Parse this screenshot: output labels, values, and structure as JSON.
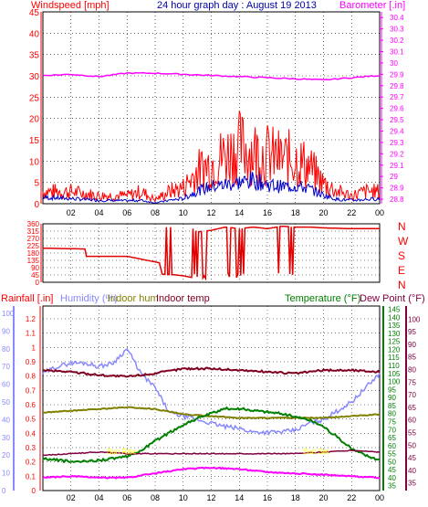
{
  "header": {
    "left_label": "Windspeed [mph]",
    "title": "24 hour graph day : August 19 2013",
    "right_label": "Barometer [.in]"
  },
  "lower_header": {
    "rainfall": "Rainfall [.in]",
    "humidity": "Humidity (%)",
    "indoor_hum": "Indoor hum",
    "indoor_temp": "Indoor temp",
    "temperature": "Temperature (°F)",
    "dew_point": "Dew Point (°F)"
  },
  "colors": {
    "wind": "#ff0000",
    "wind_avg": "#0000cc",
    "barometer": "#ff00ff",
    "direction": "#e00000",
    "rainfall": "#ff00ff",
    "humidity": "#8888ff",
    "indoor_hum": "#808000",
    "indoor_temp": "#800020",
    "temperature": "#008000",
    "dewpoint": "#800040",
    "sun_label": "#ffff00"
  },
  "chart_data": [
    {
      "type": "line",
      "name": "windspeed-barometer",
      "x_ticks": [
        "02",
        "04",
        "06",
        "08",
        "10",
        "12",
        "14",
        "16",
        "18",
        "20",
        "22",
        "00"
      ],
      "y_left_ticks": [
        0,
        5,
        10,
        15,
        20,
        25,
        30,
        35,
        40,
        45
      ],
      "y_left_range": [
        0,
        45
      ],
      "y_right_ticks": [
        "28.8",
        "28.9",
        "29",
        "29.1",
        "29.2",
        "29.3",
        "29.4",
        "29.5",
        "29.6",
        "29.7",
        "29.8",
        "29.9",
        "30",
        "30.1",
        "30.2",
        "30.3",
        "30.4"
      ],
      "y_right_range": [
        28.76,
        30.45
      ],
      "series": [
        {
          "role": "gust",
          "axis": "left",
          "x": [
            0,
            2,
            4,
            6,
            7,
            8,
            9,
            10,
            11,
            12,
            13,
            14,
            15,
            16,
            17,
            18,
            19,
            20,
            21,
            22,
            23,
            24
          ],
          "y": [
            3,
            3,
            2,
            2,
            3,
            1,
            3,
            4,
            8,
            10,
            12,
            14,
            13,
            12,
            11,
            11,
            9,
            5,
            3,
            2,
            3,
            3
          ]
        },
        {
          "role": "average",
          "axis": "left",
          "x": [
            0,
            2,
            4,
            6,
            7,
            8,
            9,
            10,
            11,
            12,
            13,
            14,
            15,
            16,
            17,
            18,
            19,
            20,
            21,
            22,
            23,
            24
          ],
          "y": [
            1.5,
            1.2,
            0.8,
            0.7,
            0.8,
            0.2,
            0.8,
            1.2,
            3,
            4,
            4.5,
            5,
            5.5,
            4.5,
            4,
            4.2,
            3.5,
            2,
            1,
            0.8,
            1,
            1.2
          ]
        },
        {
          "role": "barometer",
          "axis": "right",
          "x": [
            0,
            2,
            4,
            6,
            8,
            10,
            12,
            14,
            16,
            18,
            20,
            22,
            24
          ],
          "y": [
            29.89,
            29.9,
            29.88,
            29.91,
            29.91,
            29.9,
            29.89,
            29.88,
            29.87,
            29.86,
            29.85,
            29.87,
            29.89
          ]
        }
      ]
    },
    {
      "type": "line",
      "name": "wind-direction",
      "x_ticks": [
        "02",
        "04",
        "06",
        "08",
        "10",
        "12",
        "14",
        "16",
        "18",
        "20",
        "22",
        "00"
      ],
      "y_left_ticks": [
        0,
        45,
        90,
        135,
        180,
        225,
        270,
        315,
        360
      ],
      "y_left_range": [
        0,
        360
      ],
      "y_right_ticks": [
        "N",
        "W",
        "S",
        "E",
        "N"
      ],
      "x": [
        0,
        3,
        3.1,
        6,
        8.3,
        8.5,
        9.5,
        10,
        10.6,
        10.7,
        11,
        12,
        13,
        14,
        15,
        16,
        17,
        18,
        19,
        20,
        22,
        24
      ],
      "y": [
        210,
        205,
        160,
        160,
        120,
        50,
        45,
        40,
        30,
        330,
        310,
        320,
        340,
        330,
        340,
        330,
        345,
        340,
        340,
        335,
        330,
        330
      ]
    },
    {
      "type": "line",
      "name": "rain-humidity-temperature",
      "x_ticks": [
        "02",
        "04",
        "06",
        "08",
        "10",
        "12",
        "14",
        "16",
        "18",
        "20",
        "22",
        "00"
      ],
      "annotations": [
        "Sun Rise",
        "Sun Set"
      ],
      "rainfall_ticks": [
        "0",
        "0.1",
        "0.2",
        "0.3",
        "0.4",
        "0.5",
        "0.6",
        "0.7",
        "0.8",
        "0.9",
        "1",
        "1.1",
        "1.2"
      ],
      "rainfall_range": [
        0,
        1.2
      ],
      "humidity_ticks": [
        0,
        10,
        20,
        30,
        40,
        50,
        60,
        70,
        80,
        90,
        100
      ],
      "humidity_range": [
        0,
        100
      ],
      "temperature_ticks": [
        35,
        40,
        45,
        50,
        55,
        60,
        65,
        70,
        75,
        80,
        85,
        90,
        95,
        100,
        105,
        110,
        115,
        120,
        125,
        130,
        135,
        140,
        145
      ],
      "temperature_range": [
        32,
        147
      ],
      "dewpoint_ticks": [
        35,
        40,
        45,
        50,
        55,
        60,
        65,
        70,
        75,
        80,
        85,
        90,
        95,
        100
      ],
      "series": [
        {
          "role": "humidity",
          "x": [
            0,
            1,
            2,
            3,
            4,
            5,
            6,
            7,
            8,
            9,
            10,
            11,
            12,
            13,
            14,
            15,
            16,
            17,
            18,
            19,
            20,
            21,
            22,
            23,
            24
          ],
          "y": [
            66,
            70,
            72,
            72,
            70,
            72,
            80,
            66,
            58,
            44,
            42,
            40,
            38,
            36,
            35,
            33,
            33,
            33,
            34,
            38,
            40,
            45,
            50,
            58,
            66
          ]
        },
        {
          "role": "indoor_hum",
          "x": [
            0,
            2,
            4,
            6,
            8,
            10,
            12,
            14,
            16,
            18,
            20,
            22,
            24
          ],
          "y": [
            44,
            45,
            46,
            47,
            46,
            43,
            42,
            41,
            41,
            41,
            41,
            42,
            43
          ]
        },
        {
          "role": "indoor_temp",
          "x": [
            0,
            2,
            4,
            6,
            8,
            10,
            12,
            14,
            16,
            18,
            20,
            22,
            24
          ],
          "y": [
            107,
            106,
            104,
            103,
            105,
            108,
            108,
            107,
            106,
            105,
            107,
            107,
            106
          ]
        },
        {
          "role": "temperature",
          "x": [
            0,
            1,
            2,
            3,
            4,
            5,
            6,
            7,
            8,
            9,
            10,
            11,
            12,
            13,
            14,
            15,
            16,
            17,
            18,
            19,
            20,
            21,
            22,
            23,
            24
          ],
          "y": [
            52,
            51,
            50,
            50,
            51,
            52,
            53,
            57,
            63,
            68,
            73,
            77,
            80,
            83,
            83,
            82,
            81,
            80,
            78,
            76,
            72,
            65,
            58,
            54,
            51
          ]
        },
        {
          "role": "dewpoint",
          "x": [
            0,
            2,
            4,
            6,
            8,
            10,
            12,
            14,
            16,
            18,
            20,
            22,
            24
          ],
          "y": [
            54,
            55,
            56,
            55,
            55,
            55,
            55,
            55,
            55,
            55,
            56,
            57,
            56
          ]
        },
        {
          "role": "rainfall",
          "x": [
            0,
            2,
            4,
            6,
            8,
            10,
            12,
            14,
            16,
            18,
            20,
            22,
            24
          ],
          "y": [
            0.09,
            0.1,
            0.09,
            0.09,
            0.12,
            0.15,
            0.16,
            0.15,
            0.13,
            0.12,
            0.11,
            0.1,
            0.09
          ]
        }
      ]
    }
  ]
}
